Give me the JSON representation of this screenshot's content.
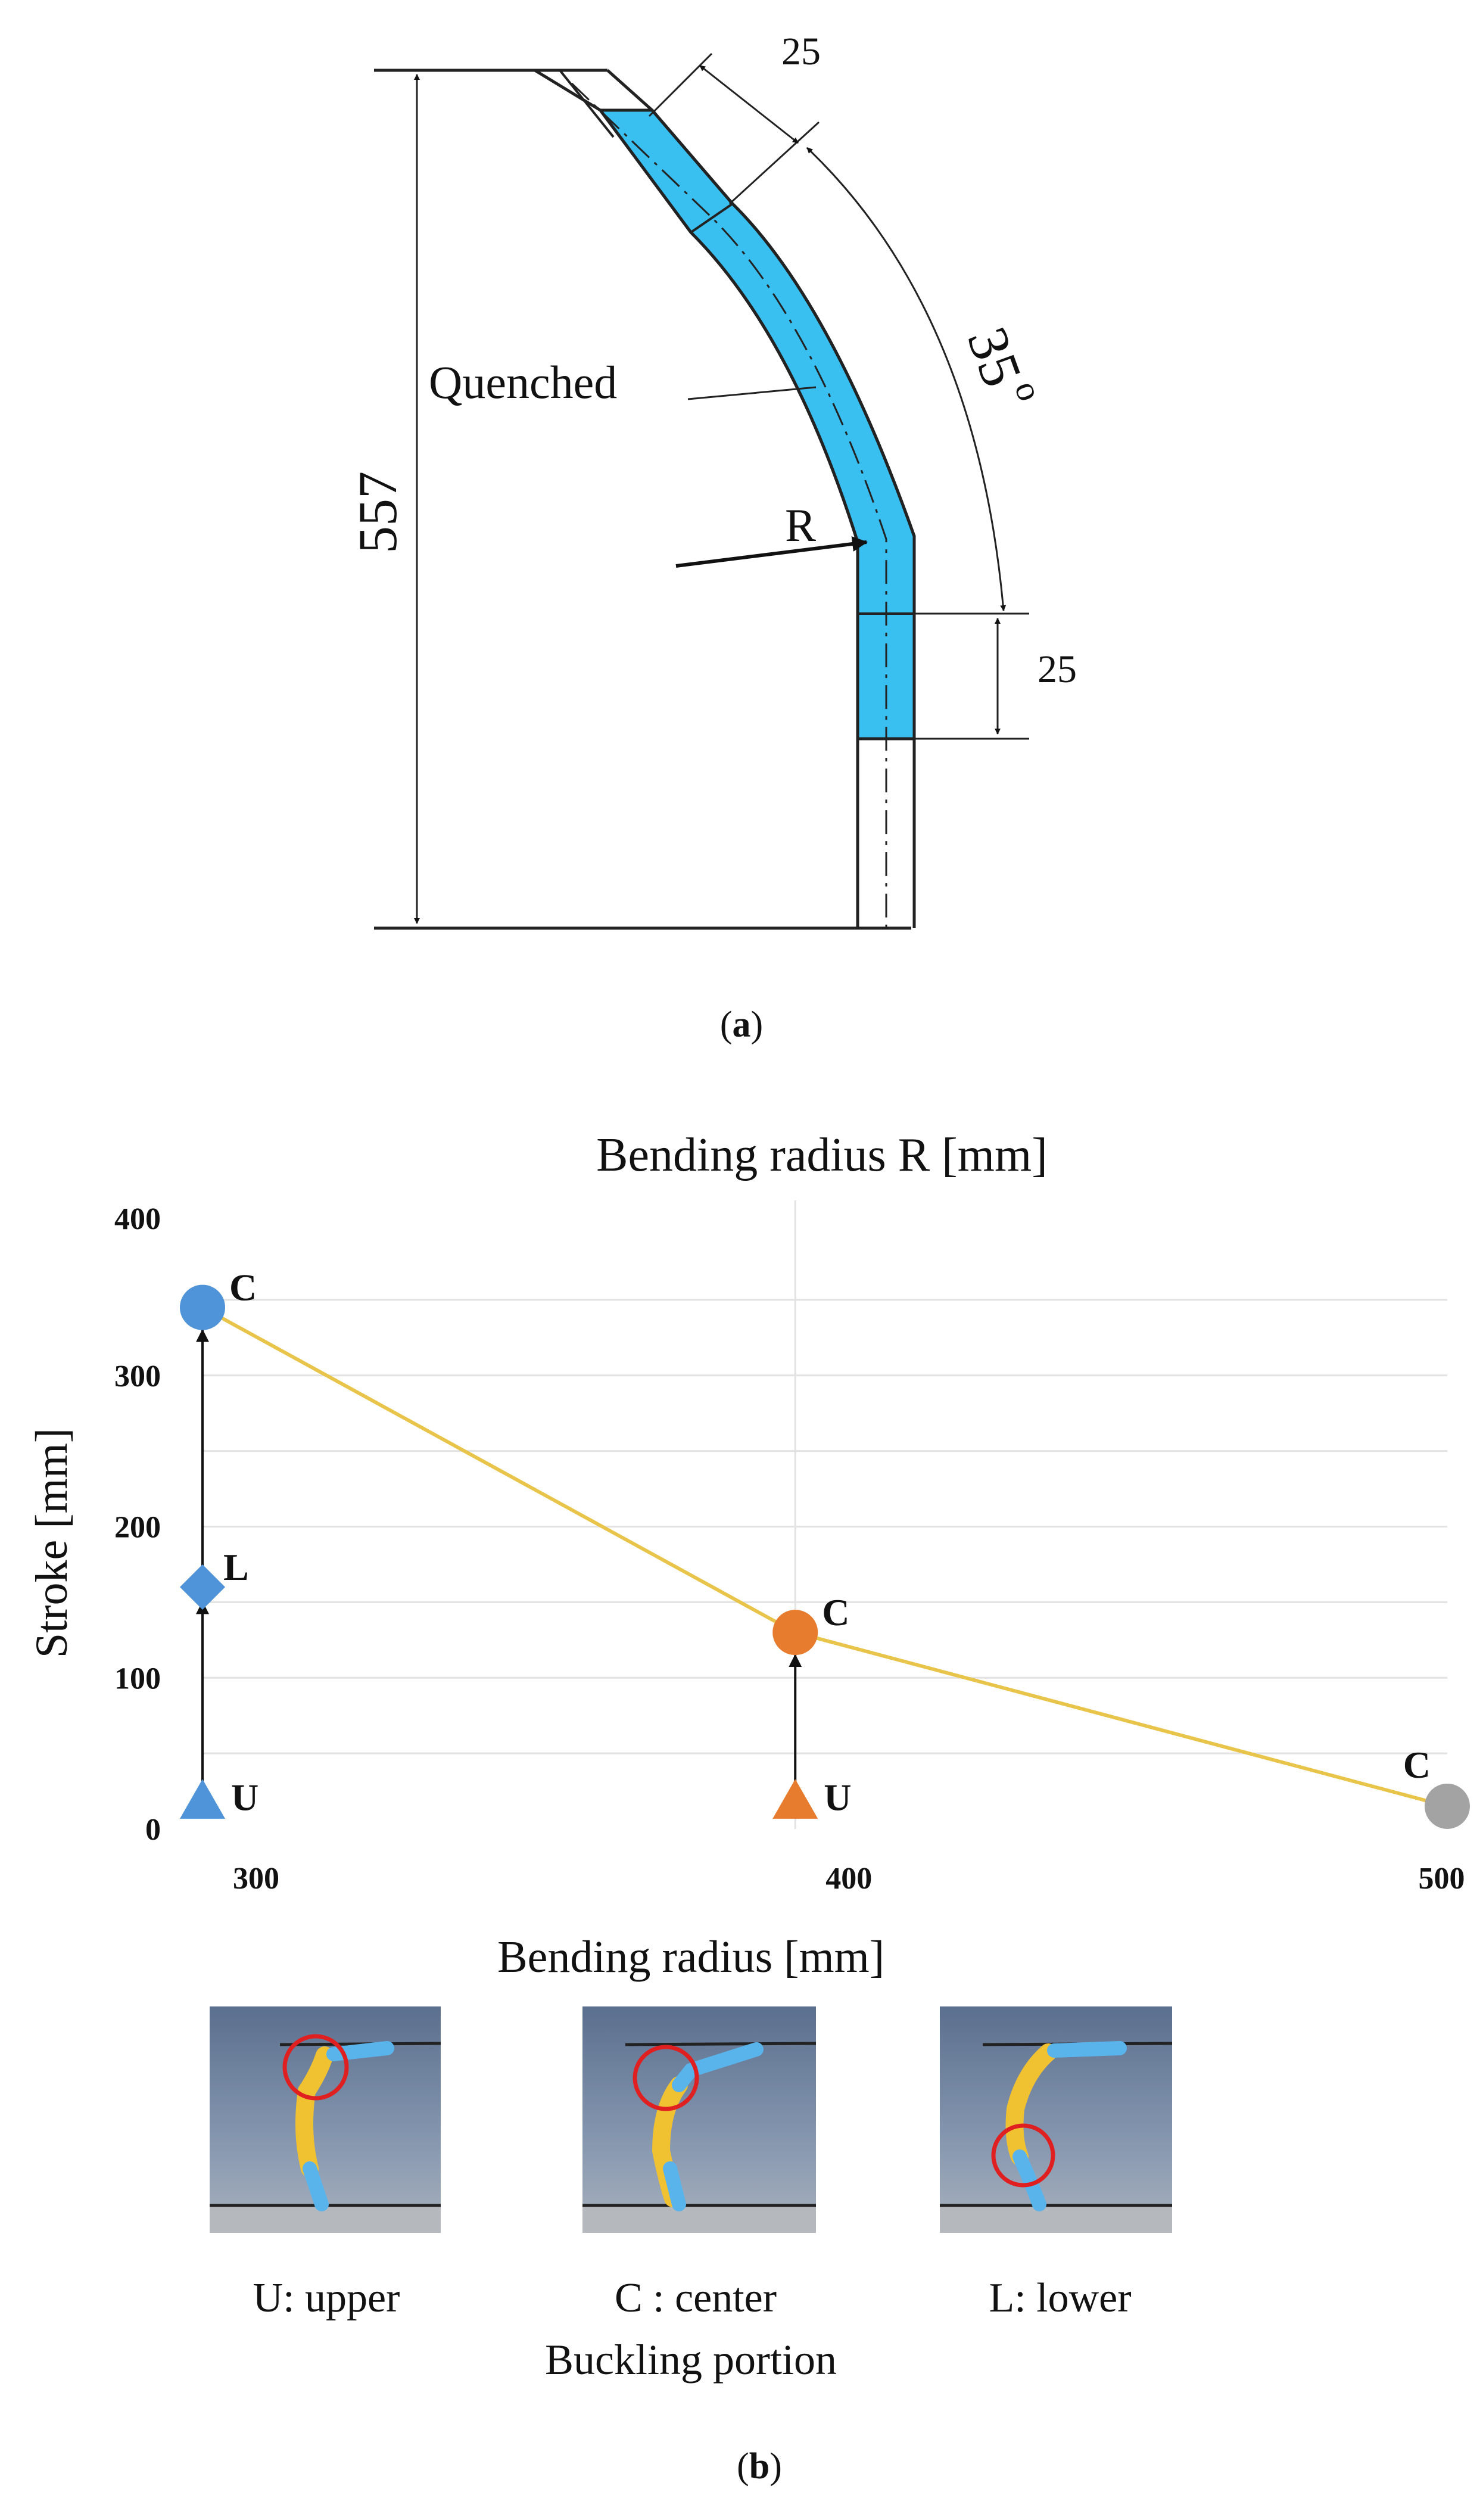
{
  "panel_a": {
    "caption_open": "(",
    "caption_letter": "a",
    "caption_close": ")",
    "dim_height": "557",
    "dim_top_length": "25",
    "dim_bottom_length": "25",
    "dim_angle": "35",
    "angle_unit": "o",
    "label_quenched": "Quenched",
    "label_radius": "R",
    "colors": {
      "quenched": "#39c0f0",
      "outline": "#222222"
    }
  },
  "panel_b": {
    "caption_open": "(",
    "caption_letter": "b",
    "caption_close": ")",
    "images": [
      {
        "label": "U: upper"
      },
      {
        "label": "C : center"
      },
      {
        "label": "L: lower"
      }
    ],
    "images_caption": "Buckling portion"
  },
  "chart_data": {
    "type": "line",
    "title": "Bending radius R [mm]",
    "xlabel": "Bending radius [mm]",
    "ylabel": "Stroke [mm]",
    "x_ticks": [
      300,
      400,
      500
    ],
    "y_ticks": [
      0,
      100,
      200,
      300,
      400
    ],
    "xlim": [
      300,
      510
    ],
    "ylim": [
      0,
      400
    ],
    "grid": true,
    "series": [
      {
        "points": [
          {
            "x": 300,
            "y": 345
          },
          {
            "x": 400,
            "y": 130
          },
          {
            "x": 510,
            "y": 15
          }
        ],
        "color": "#e8c54a"
      }
    ],
    "markers": [
      {
        "x": 300,
        "y": 18,
        "shape": "triangle",
        "color": "#4f93d9",
        "label": "U"
      },
      {
        "x": 300,
        "y": 160,
        "shape": "diamond",
        "color": "#4f93d9",
        "label": "L"
      },
      {
        "x": 300,
        "y": 345,
        "shape": "circle",
        "color": "#4f93d9",
        "label": "C"
      },
      {
        "x": 400,
        "y": 18,
        "shape": "triangle",
        "color": "#e87c2e",
        "label": "U"
      },
      {
        "x": 400,
        "y": 130,
        "shape": "circle",
        "color": "#e87c2e",
        "label": "C"
      },
      {
        "x": 510,
        "y": 15,
        "shape": "circle",
        "color": "#a3a3a3",
        "label": "C"
      }
    ],
    "arrows": [
      {
        "x": 300,
        "from": 18,
        "to": 150
      },
      {
        "x": 300,
        "from": 160,
        "to": 330
      },
      {
        "x": 400,
        "from": 18,
        "to": 115
      }
    ]
  }
}
